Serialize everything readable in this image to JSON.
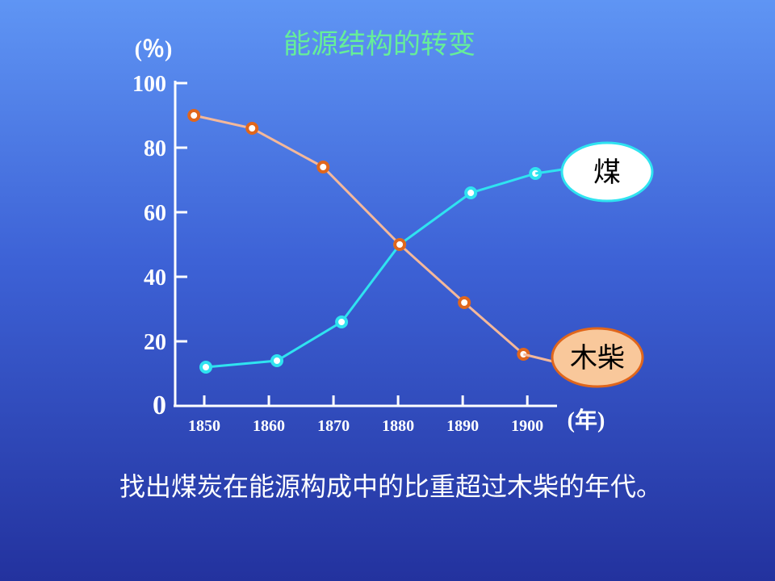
{
  "chart_data": {
    "type": "line",
    "title": "能源结构的转变",
    "y_label": "(％)",
    "x_label": "(年)",
    "xlim": [
      1845.5,
      1904.6
    ],
    "xticks": [
      1850,
      1860,
      1870,
      1880,
      1890,
      1900
    ],
    "ylim": [
      0,
      100
    ],
    "yticks": [
      0,
      20,
      40,
      60,
      80,
      100
    ],
    "series": [
      {
        "name": "煤",
        "color": "#2fe3f0",
        "x": [
          1850.25,
          1861.25,
          1871.25,
          1880.25,
          1891.25,
          1901.25
        ],
        "values": [
          12,
          14,
          26,
          50,
          66,
          72
        ]
      },
      {
        "name": "木柴",
        "color": "#f4b89a",
        "marker_color": "#e0661c",
        "x": [
          1848.4,
          1857.4,
          1868.4,
          1880.25,
          1890.25,
          1899.4
        ],
        "values": [
          90,
          86,
          74,
          50,
          32,
          16
        ]
      }
    ]
  },
  "question": "找出煤炭在能源构成中的比重超过木柴的年代。"
}
